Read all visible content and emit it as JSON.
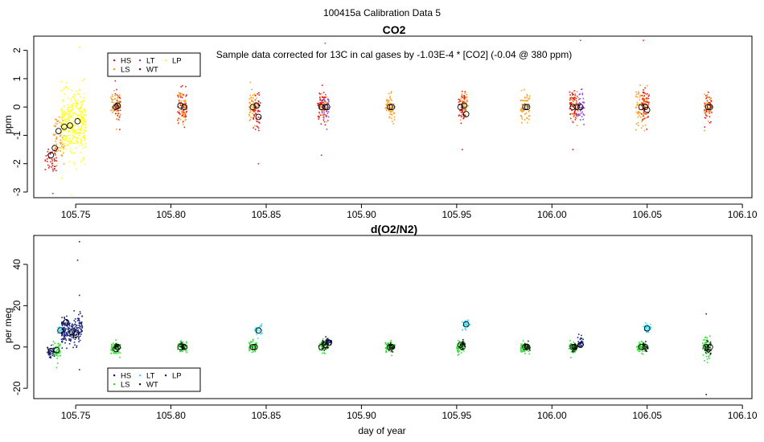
{
  "figure": {
    "title": "100415a   Calibration Data 5",
    "xlabel": "day of year"
  },
  "chart_data": [
    {
      "type": "scatter",
      "title": "CO2",
      "annotation": "Sample data corrected for 13C in cal gases by -1.03E-4 * [CO2] (-0.04 @ 380 ppm)",
      "xlabel": "",
      "ylabel": "ppm",
      "xlim": [
        105.728,
        106.105
      ],
      "ylim": [
        -3.2,
        2.5
      ],
      "xticks": [
        105.75,
        105.8,
        105.85,
        105.9,
        105.95,
        106.0,
        106.05,
        106.1
      ],
      "xtick_labels": [
        "105.75",
        "105.80",
        "105.85",
        "105.90",
        "105.95",
        "106.00",
        "106.05",
        "106.10"
      ],
      "yticks": [
        -3,
        -2,
        -1,
        0,
        1,
        2
      ],
      "ytick_labels": [
        "-3",
        "-2",
        "-1",
        "0",
        "1",
        "2"
      ],
      "legend": {
        "position": "top-left",
        "entries": [
          {
            "label": "HS",
            "color": "#e41a1c"
          },
          {
            "label": "LS",
            "color": "#ff9d1e"
          },
          {
            "label": "LT",
            "color": "#9b3fd0"
          },
          {
            "label": "WT",
            "color": "#8b0a0a"
          },
          {
            "label": "LP",
            "color": "#ffff22"
          }
        ]
      },
      "clusters": [
        {
          "x": 105.737,
          "w": 0.006,
          "center": -1.8,
          "spread": 0.5,
          "color": "#e41a1c",
          "n": 45
        },
        {
          "x": 105.741,
          "w": 0.006,
          "center": -1.1,
          "spread": 0.8,
          "color": "#ff9d1e",
          "n": 60
        },
        {
          "x": 105.749,
          "w": 0.013,
          "center": -0.6,
          "spread": 1.1,
          "color": "#ffff22",
          "n": 380
        },
        {
          "x": 105.771,
          "w": 0.005,
          "center": 0.0,
          "spread": 0.55,
          "color": "#ff9d1e",
          "n": 55
        },
        {
          "x": 105.772,
          "w": 0.003,
          "center": 0.0,
          "spread": 0.6,
          "color": "#e41a1c",
          "n": 30
        },
        {
          "x": 105.806,
          "w": 0.005,
          "center": 0.0,
          "spread": 0.6,
          "color": "#e41a1c",
          "n": 55
        },
        {
          "x": 105.806,
          "w": 0.004,
          "center": 0.0,
          "spread": 0.6,
          "color": "#ff9d1e",
          "n": 45
        },
        {
          "x": 105.843,
          "w": 0.004,
          "center": 0.0,
          "spread": 0.55,
          "color": "#ff9d1e",
          "n": 60
        },
        {
          "x": 105.845,
          "w": 0.004,
          "center": -0.2,
          "spread": 0.6,
          "color": "#e41a1c",
          "n": 45
        },
        {
          "x": 105.879,
          "w": 0.004,
          "center": 0.0,
          "spread": 0.6,
          "color": "#e41a1c",
          "n": 55
        },
        {
          "x": 105.881,
          "w": 0.004,
          "center": 0.0,
          "spread": 0.55,
          "color": "#9b3fd0",
          "n": 50
        },
        {
          "x": 105.88,
          "w": 0.004,
          "center": 0.0,
          "spread": 0.5,
          "color": "#ff9d1e",
          "n": 25
        },
        {
          "x": 105.915,
          "w": 0.005,
          "center": 0.0,
          "spread": 0.45,
          "color": "#ff9d1e",
          "n": 60
        },
        {
          "x": 105.953,
          "w": 0.004,
          "center": 0.0,
          "spread": 0.6,
          "color": "#e41a1c",
          "n": 55
        },
        {
          "x": 105.954,
          "w": 0.004,
          "center": 0.0,
          "spread": 0.5,
          "color": "#ff9d1e",
          "n": 40
        },
        {
          "x": 105.986,
          "w": 0.005,
          "center": 0.0,
          "spread": 0.55,
          "color": "#ff9d1e",
          "n": 65
        },
        {
          "x": 106.011,
          "w": 0.004,
          "center": 0.0,
          "spread": 0.6,
          "color": "#e41a1c",
          "n": 55
        },
        {
          "x": 106.015,
          "w": 0.004,
          "center": 0.0,
          "spread": 0.55,
          "color": "#9b3fd0",
          "n": 50
        },
        {
          "x": 106.012,
          "w": 0.004,
          "center": 0.0,
          "spread": 0.5,
          "color": "#ff9d1e",
          "n": 25
        },
        {
          "x": 106.047,
          "w": 0.006,
          "center": 0.0,
          "spread": 0.7,
          "color": "#ff9d1e",
          "n": 85
        },
        {
          "x": 106.049,
          "w": 0.004,
          "center": 0.0,
          "spread": 0.6,
          "color": "#e41a1c",
          "n": 45
        },
        {
          "x": 106.082,
          "w": 0.004,
          "center": 0.0,
          "spread": 0.5,
          "color": "#e41a1c",
          "n": 45
        },
        {
          "x": 106.082,
          "w": 0.004,
          "center": 0.0,
          "spread": 0.5,
          "color": "#ff9d1e",
          "n": 30
        }
      ],
      "outliers": [
        {
          "x": 105.752,
          "y": 2.1,
          "color": "#ffff22"
        },
        {
          "x": 105.748,
          "y": -3.1,
          "color": "#ffff22"
        },
        {
          "x": 105.738,
          "y": -3.05,
          "color": "#e41a1c"
        },
        {
          "x": 105.881,
          "y": 2.25,
          "color": "#9b3fd0"
        },
        {
          "x": 106.015,
          "y": 2.35,
          "color": "#9b3fd0"
        },
        {
          "x": 106.048,
          "y": 2.35,
          "color": "#e41a1c"
        },
        {
          "x": 105.846,
          "y": -2.0,
          "color": "#e41a1c"
        },
        {
          "x": 105.879,
          "y": -1.7,
          "color": "#e41a1c"
        },
        {
          "x": 105.953,
          "y": -1.5,
          "color": "#e41a1c"
        },
        {
          "x": 106.011,
          "y": -1.5,
          "color": "#e41a1c"
        }
      ],
      "means": [
        {
          "x": 105.737,
          "y": -1.7
        },
        {
          "x": 105.739,
          "y": -1.45
        },
        {
          "x": 105.741,
          "y": -0.85
        },
        {
          "x": 105.744,
          "y": -0.7
        },
        {
          "x": 105.747,
          "y": -0.65
        },
        {
          "x": 105.751,
          "y": -0.5
        },
        {
          "x": 105.771,
          "y": 0.0
        },
        {
          "x": 105.772,
          "y": 0.05
        },
        {
          "x": 105.805,
          "y": 0.05
        },
        {
          "x": 105.807,
          "y": 0.0
        },
        {
          "x": 105.843,
          "y": 0.0
        },
        {
          "x": 105.845,
          "y": 0.05
        },
        {
          "x": 105.846,
          "y": -0.35
        },
        {
          "x": 105.879,
          "y": 0.0
        },
        {
          "x": 105.881,
          "y": 0.0
        },
        {
          "x": 105.882,
          "y": 0.0
        },
        {
          "x": 105.915,
          "y": 0.0
        },
        {
          "x": 105.916,
          "y": 0.0
        },
        {
          "x": 105.952,
          "y": 0.0
        },
        {
          "x": 105.954,
          "y": 0.05
        },
        {
          "x": 105.955,
          "y": -0.25
        },
        {
          "x": 105.986,
          "y": 0.0
        },
        {
          "x": 105.987,
          "y": 0.0
        },
        {
          "x": 106.011,
          "y": 0.0
        },
        {
          "x": 106.013,
          "y": 0.0
        },
        {
          "x": 106.015,
          "y": 0.0
        },
        {
          "x": 106.047,
          "y": 0.0
        },
        {
          "x": 106.049,
          "y": 0.0
        },
        {
          "x": 106.05,
          "y": -0.1
        },
        {
          "x": 106.082,
          "y": 0.0
        },
        {
          "x": 106.083,
          "y": 0.0
        }
      ]
    },
    {
      "type": "scatter",
      "title": "d(O2/N2)",
      "xlabel": "day of year",
      "ylabel": "per meg",
      "xlim": [
        105.728,
        106.105
      ],
      "ylim": [
        -25,
        54
      ],
      "xticks": [
        105.75,
        105.8,
        105.85,
        105.9,
        105.95,
        106.0,
        106.05,
        106.1
      ],
      "xtick_labels": [
        "105.75",
        "105.80",
        "105.85",
        "105.90",
        "105.95",
        "106.00",
        "106.05",
        "106.10"
      ],
      "yticks": [
        -20,
        0,
        20,
        40
      ],
      "ytick_labels": [
        "-20",
        "0",
        "20",
        "40"
      ],
      "legend": {
        "position": "bottom-left",
        "entries": [
          {
            "label": "HS",
            "color": "#1a1a5a"
          },
          {
            "label": "LS",
            "color": "#33dd33"
          },
          {
            "label": "LT",
            "color": "#33e0ff"
          },
          {
            "label": "WT",
            "color": "#0a2a0a"
          },
          {
            "label": "LP",
            "color": "#1a237e"
          }
        ]
      },
      "clusters": [
        {
          "x": 105.737,
          "w": 0.004,
          "center": -2,
          "spread": 3,
          "color": "#1a237e",
          "n": 40
        },
        {
          "x": 105.74,
          "w": 0.004,
          "center": -2,
          "spread": 4,
          "color": "#33dd33",
          "n": 45
        },
        {
          "x": 105.742,
          "w": 0.003,
          "center": 8,
          "spread": 2,
          "color": "#33e0ff",
          "n": 20
        },
        {
          "x": 105.748,
          "w": 0.011,
          "center": 8,
          "spread": 7,
          "color": "#1a237e",
          "n": 220
        },
        {
          "x": 105.771,
          "w": 0.005,
          "center": -1,
          "spread": 3.5,
          "color": "#33dd33",
          "n": 55
        },
        {
          "x": 105.772,
          "w": 0.003,
          "center": 0,
          "spread": 2,
          "color": "#0a2a0a",
          "n": 25
        },
        {
          "x": 105.806,
          "w": 0.005,
          "center": 0,
          "spread": 3,
          "color": "#33dd33",
          "n": 50
        },
        {
          "x": 105.806,
          "w": 0.003,
          "center": 0,
          "spread": 2,
          "color": "#0a2a0a",
          "n": 25
        },
        {
          "x": 105.843,
          "w": 0.004,
          "center": 0,
          "spread": 3,
          "color": "#33dd33",
          "n": 55
        },
        {
          "x": 105.846,
          "w": 0.004,
          "center": 8,
          "spread": 2.5,
          "color": "#33e0ff",
          "n": 35
        },
        {
          "x": 105.88,
          "w": 0.005,
          "center": 0,
          "spread": 3,
          "color": "#33dd33",
          "n": 50
        },
        {
          "x": 105.881,
          "w": 0.004,
          "center": 1,
          "spread": 2.5,
          "color": "#0a2a0a",
          "n": 35
        },
        {
          "x": 105.883,
          "w": 0.003,
          "center": 3,
          "spread": 2,
          "color": "#1a237e",
          "n": 30
        },
        {
          "x": 105.915,
          "w": 0.005,
          "center": 0,
          "spread": 2.5,
          "color": "#33dd33",
          "n": 55
        },
        {
          "x": 105.916,
          "w": 0.003,
          "center": 0,
          "spread": 2,
          "color": "#0a2a0a",
          "n": 20
        },
        {
          "x": 105.952,
          "w": 0.004,
          "center": 0,
          "spread": 3,
          "color": "#33dd33",
          "n": 50
        },
        {
          "x": 105.955,
          "w": 0.004,
          "center": 11,
          "spread": 3,
          "color": "#33e0ff",
          "n": 35
        },
        {
          "x": 105.953,
          "w": 0.003,
          "center": 1,
          "spread": 2,
          "color": "#0a2a0a",
          "n": 20
        },
        {
          "x": 105.986,
          "w": 0.005,
          "center": 0,
          "spread": 2.5,
          "color": "#33dd33",
          "n": 55
        },
        {
          "x": 105.987,
          "w": 0.003,
          "center": 0,
          "spread": 2,
          "color": "#0a2a0a",
          "n": 20
        },
        {
          "x": 106.011,
          "w": 0.004,
          "center": 0,
          "spread": 3,
          "color": "#33dd33",
          "n": 45
        },
        {
          "x": 106.012,
          "w": 0.003,
          "center": 0,
          "spread": 2.5,
          "color": "#0a2a0a",
          "n": 25
        },
        {
          "x": 106.015,
          "w": 0.003,
          "center": 2,
          "spread": 3,
          "color": "#1a237e",
          "n": 35
        },
        {
          "x": 106.047,
          "w": 0.005,
          "center": 0,
          "spread": 3,
          "color": "#33dd33",
          "n": 55
        },
        {
          "x": 106.05,
          "w": 0.004,
          "center": 9,
          "spread": 2.5,
          "color": "#33e0ff",
          "n": 35
        },
        {
          "x": 106.049,
          "w": 0.003,
          "center": 0,
          "spread": 2,
          "color": "#0a2a0a",
          "n": 20
        },
        {
          "x": 106.081,
          "w": 0.004,
          "center": 0,
          "spread": 5,
          "color": "#33dd33",
          "n": 50
        },
        {
          "x": 106.082,
          "w": 0.003,
          "center": 0,
          "spread": 4,
          "color": "#0a2a0a",
          "n": 30
        }
      ],
      "outliers": [
        {
          "x": 105.752,
          "y": 51,
          "color": "#1a237e"
        },
        {
          "x": 105.751,
          "y": 42,
          "color": "#1a237e"
        },
        {
          "x": 105.752,
          "y": 25,
          "color": "#1a237e"
        },
        {
          "x": 105.752,
          "y": -11,
          "color": "#1a237e"
        },
        {
          "x": 105.74,
          "y": -10,
          "color": "#33dd33"
        },
        {
          "x": 106.081,
          "y": 16,
          "color": "#0a2a0a"
        },
        {
          "x": 106.081,
          "y": -23,
          "color": "#0a2a0a"
        }
      ],
      "means": [
        {
          "x": 105.737,
          "y": -2
        },
        {
          "x": 105.74,
          "y": -1.5
        },
        {
          "x": 105.742,
          "y": 8
        },
        {
          "x": 105.745,
          "y": 12
        },
        {
          "x": 105.748,
          "y": 7
        },
        {
          "x": 105.75,
          "y": 6
        },
        {
          "x": 105.771,
          "y": -1
        },
        {
          "x": 105.772,
          "y": 0
        },
        {
          "x": 105.805,
          "y": 0
        },
        {
          "x": 105.807,
          "y": 0
        },
        {
          "x": 105.843,
          "y": 0
        },
        {
          "x": 105.844,
          "y": 0
        },
        {
          "x": 105.846,
          "y": 8
        },
        {
          "x": 105.879,
          "y": 0
        },
        {
          "x": 105.881,
          "y": 1
        },
        {
          "x": 105.883,
          "y": 2
        },
        {
          "x": 105.915,
          "y": 0
        },
        {
          "x": 105.916,
          "y": 0
        },
        {
          "x": 105.952,
          "y": 1
        },
        {
          "x": 105.953,
          "y": 0
        },
        {
          "x": 105.955,
          "y": 11
        },
        {
          "x": 105.986,
          "y": 0
        },
        {
          "x": 105.987,
          "y": 0
        },
        {
          "x": 106.011,
          "y": 0
        },
        {
          "x": 106.012,
          "y": 0
        },
        {
          "x": 106.015,
          "y": 1
        },
        {
          "x": 106.047,
          "y": 0
        },
        {
          "x": 106.049,
          "y": 0
        },
        {
          "x": 106.05,
          "y": 9
        },
        {
          "x": 106.081,
          "y": 0
        },
        {
          "x": 106.083,
          "y": 0
        }
      ]
    }
  ]
}
